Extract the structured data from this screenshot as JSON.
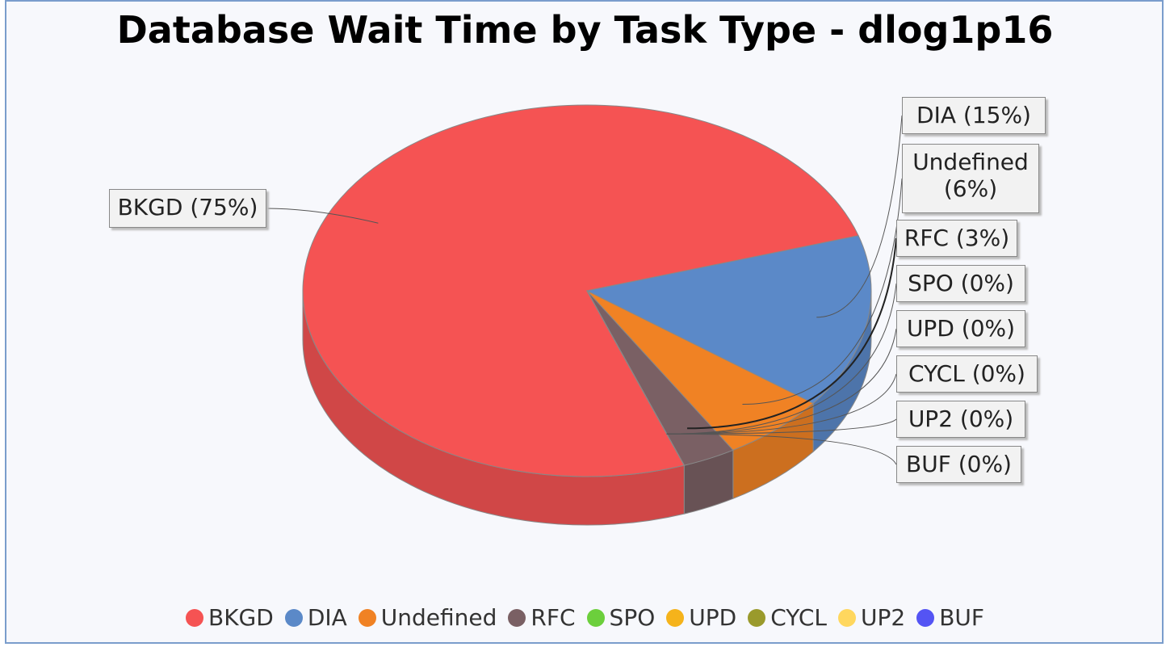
{
  "chart_data": {
    "type": "pie",
    "title": "Database Wait Time by Task Type - dlog1p16",
    "categories": [
      "BKGD",
      "DIA",
      "Undefined",
      "RFC",
      "SPO",
      "UPD",
      "CYCL",
      "UP2",
      "BUF"
    ],
    "values": [
      75,
      15,
      6,
      3,
      0,
      0,
      0,
      0,
      0
    ],
    "value_labels": [
      "BKGD (75%)",
      "DIA (15%)",
      "Undefined (6%)",
      "RFC (3%)",
      "SPO (0%)",
      "UPD (0%)",
      "CYCL (0%)",
      "UP2 (0%)",
      "BUF (0%)"
    ],
    "colors": [
      "#f55353",
      "#5b89c8",
      "#f08224",
      "#7a6064",
      "#6ccf3c",
      "#f5b31b",
      "#9a9a2c",
      "#ffd75e",
      "#5454f4"
    ],
    "legend": "bottom"
  }
}
